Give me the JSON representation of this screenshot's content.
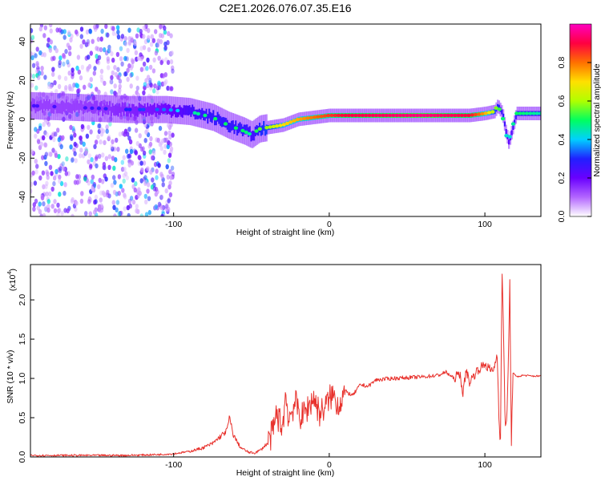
{
  "figure_title": "C2E1.2026.076.07.35.E16",
  "chart_data": [
    {
      "type": "heatmap",
      "xlabel": "Height of straight line (km)",
      "ylabel": "Frequency (Hz)",
      "xlim": [
        -192,
        136
      ],
      "ylim": [
        -50,
        49
      ],
      "xticks": [
        -100,
        0,
        100
      ],
      "xtick_labels": [
        "-100",
        "0",
        "100"
      ],
      "yticks": [
        -40,
        -20,
        0,
        20,
        40
      ],
      "ytick_labels": [
        "-40",
        "-20",
        "0",
        "20",
        "40"
      ],
      "colorbar": {
        "label": "Normalized spectral amplitude",
        "range": [
          0.0,
          1.0
        ],
        "ticks": [
          0.0,
          0.2,
          0.4,
          0.6,
          0.8
        ],
        "tick_labels": [
          "0.0",
          "0.2",
          "0.4",
          "0.6",
          "0.8"
        ],
        "colors": [
          "#ffffff",
          "#b366ff",
          "#6a00ff",
          "#2020ff",
          "#00d0ff",
          "#00ff60",
          "#b0ff00",
          "#ffe000",
          "#ff7000",
          "#ff0040",
          "#ff00c0"
        ]
      },
      "ridge": {
        "x": [
          -192,
          -160,
          -130,
          -105,
          -90,
          -75,
          -65,
          -55,
          -50,
          -45,
          -38,
          -30,
          -20,
          -10,
          0,
          10,
          30,
          60,
          90,
          100,
          106,
          108,
          111,
          113,
          115,
          120,
          136
        ],
        "y": [
          7,
          6,
          5,
          5,
          4,
          1,
          -3,
          -6,
          -8,
          -5,
          -4,
          -3,
          0,
          1,
          2,
          2,
          2,
          2,
          2,
          3,
          4,
          7,
          3,
          -6,
          -12,
          3,
          3
        ],
        "amplitude": [
          0.25,
          0.25,
          0.3,
          0.35,
          0.45,
          0.5,
          0.5,
          0.5,
          0.45,
          0.55,
          0.6,
          0.7,
          0.75,
          0.8,
          0.85,
          0.9,
          0.92,
          0.95,
          0.9,
          0.75,
          0.6,
          0.55,
          0.5,
          0.45,
          0.4,
          0.5,
          0.45
        ]
      },
      "noise_region_x": [
        -192,
        -100
      ]
    },
    {
      "type": "line",
      "xlabel": "Height of straight line (km)",
      "ylabel": "SNR (10 * v/v)",
      "y_scale_label": "(x10",
      "y_scale_exponent": "4",
      "xlim": [
        -192,
        136
      ],
      "ylim": [
        0,
        2.45
      ],
      "xticks": [
        -100,
        0,
        100
      ],
      "xtick_labels": [
        "-100",
        "0",
        "100"
      ],
      "yticks": [
        0.0,
        0.5,
        1.0,
        1.5,
        2.0
      ],
      "ytick_labels": [
        "0.0",
        "0.5",
        "1.0",
        "1.5",
        "2.0"
      ],
      "color": "#e8322d",
      "series": [
        {
          "name": "SNR",
          "x": [
            -192,
            -160,
            -130,
            -110,
            -100,
            -90,
            -82,
            -75,
            -70,
            -66,
            -64,
            -62,
            -60,
            -57,
            -52,
            -48,
            -44,
            -40,
            -36,
            -34,
            -30,
            -28,
            -26,
            -22,
            -18,
            -14,
            -10,
            -6,
            -2,
            2,
            6,
            10,
            15,
            20,
            25,
            30,
            40,
            50,
            60,
            70,
            75,
            80,
            84,
            86,
            88,
            90,
            95,
            100,
            105,
            108,
            109,
            110,
            111,
            112,
            113,
            114,
            115,
            116,
            117,
            118,
            120,
            125,
            130,
            136
          ],
          "y": [
            0.02,
            0.02,
            0.02,
            0.03,
            0.04,
            0.07,
            0.11,
            0.17,
            0.26,
            0.33,
            0.5,
            0.3,
            0.22,
            0.12,
            0.06,
            0.05,
            0.09,
            0.17,
            0.32,
            0.55,
            0.38,
            0.8,
            0.48,
            0.7,
            0.5,
            0.62,
            0.76,
            0.55,
            0.66,
            0.8,
            0.66,
            0.84,
            0.78,
            0.92,
            0.9,
            0.98,
            1.0,
            1.01,
            1.02,
            1.04,
            1.08,
            1.0,
            1.06,
            0.8,
            1.12,
            0.95,
            1.1,
            1.18,
            1.08,
            1.3,
            0.55,
            0.15,
            2.38,
            1.6,
            0.45,
            0.4,
            1.1,
            2.25,
            0.15,
            1.08,
            1.02,
            1.04,
            1.03,
            1.03
          ]
        }
      ]
    }
  ]
}
